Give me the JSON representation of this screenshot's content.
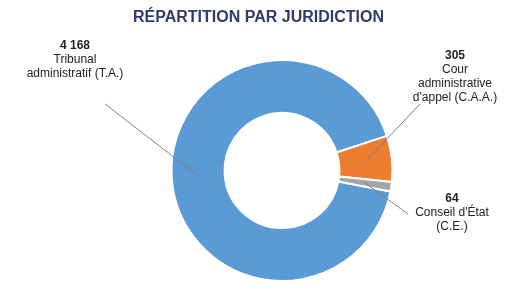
{
  "chart_data": {
    "type": "doughnut",
    "title": "RÉPARTITION PAR JURIDICTION",
    "categories": [
      "Tribunal administratif (T.A.)",
      "Cour administrative d'appel (C.A.A.)",
      "Conseil d'État (C.E.)"
    ],
    "values": [
      4168,
      305,
      64
    ],
    "value_labels": [
      "4 168",
      "305",
      "64"
    ],
    "colors": [
      "#5b9bd5",
      "#ed7d31",
      "#a5a5a5"
    ],
    "data_labels": true
  }
}
